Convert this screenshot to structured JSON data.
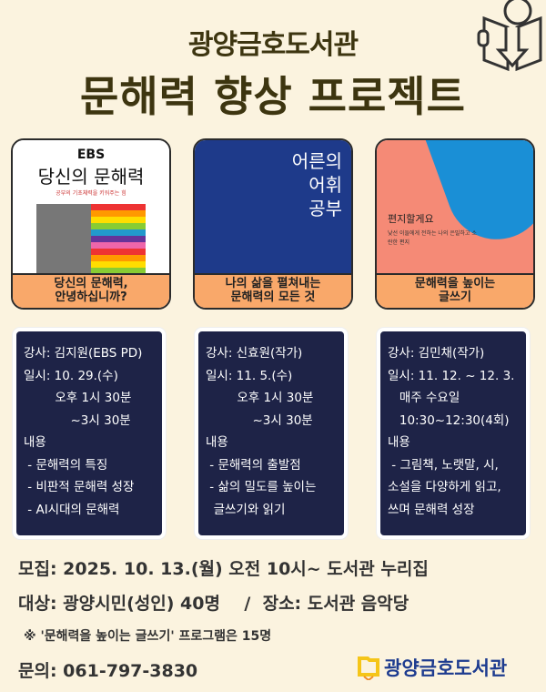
{
  "header": {
    "library": "광양금호도서관",
    "title": "문해력 향상 프로젝트"
  },
  "books": [
    {
      "cover_brand": "EBS",
      "cover_title": "당신의 문해력",
      "cover_subtitle": "공부의 기초체력을 키워주는 힘",
      "label": "당신의 문해력,\n안녕하십니까?"
    },
    {
      "cover_title": "어른의 어휘 공부",
      "label": "나의 삶을 펼쳐내는\n문해력의 모든 것"
    },
    {
      "cover_title": "편지할게요",
      "cover_subtitle": "낯선 이들에게 전하는 나의 은밀하고 소란한 편지",
      "label": "문해력을 높이는\n글쓰기"
    }
  ],
  "sessions": [
    {
      "text": "강사: 김지원(EBS PD)\n일시: 10. 29.(수)\n        오후 1시 30분\n            ~3시 30분\n내용\n - 문해력의 특징\n - 비판적 문해력 성장\n - AI시대의 문해력"
    },
    {
      "text": "강사: 신효원(작가)\n일시: 11. 5.(수)\n        오후 1시 30분\n            ~3시 30분\n내용\n - 문해력의 출발점\n - 삶의 밀도를 높이는\n  글쓰기와 읽기"
    },
    {
      "text": "강사: 김민채(작가)\n일시: 11. 12. ~ 12. 3.\n   매주 수요일\n   10:30~12:30(4회)\n내용\n - 그림책, 노랫말, 시,\n소설을 다양하게 읽고,\n쓰며 문해력 성장"
    }
  ],
  "footer": {
    "recruit": "모집: 2025. 10. 13.(월) 오전 10시~ 도서관 누리집",
    "target": "대상: 광양시민(성인) 40명    /  장소: 도서관 음악당",
    "note": "※ '문해력을 높이는 글쓰기' 프로그램은 15명",
    "contact": "문의: 061-797-3830",
    "logo": "광양금호도서관"
  },
  "colors": {
    "background": "#fbf3df",
    "title": "#3d3510",
    "label": "#f9a86a",
    "card": "#1e2347"
  }
}
